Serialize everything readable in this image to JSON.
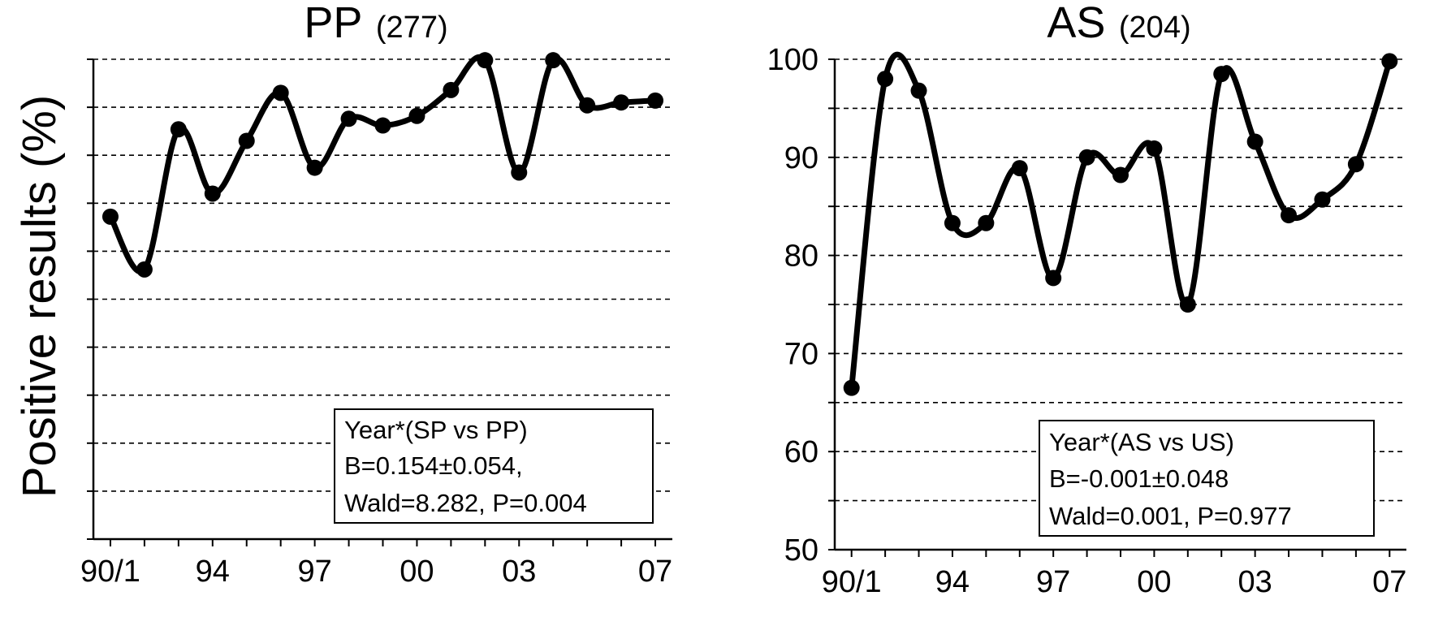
{
  "y_axis_label": "Positive results (%)",
  "chart_data": [
    {
      "type": "line",
      "title": "PP",
      "title_n": "(277)",
      "xlabel": "",
      "ylabel": "Positive results (%)",
      "x_tick_labels": [
        "90/1",
        "94",
        "97",
        "00",
        "03",
        "07"
      ],
      "x_tick_years": [
        1990,
        1993,
        1996,
        1999,
        2002,
        2006
      ],
      "xlim": [
        1989.5,
        2006.5
      ],
      "ylim": [
        50,
        100
      ],
      "y_tick_labels": [],
      "grid_step": 5,
      "grid": true,
      "series": [
        {
          "x": [
            1990,
            1991,
            1992,
            1993,
            1994,
            1995,
            1996,
            1997,
            1998,
            1999,
            2000,
            2001,
            2002,
            2003,
            2004,
            2005,
            2006
          ],
          "values": [
            83.6,
            78.1,
            92.7,
            86.0,
            91.5,
            96.5,
            88.7,
            93.8,
            93.1,
            94.1,
            96.8,
            99.9,
            88.2,
            99.9,
            95.2,
            95.5,
            95.7
          ]
        }
      ],
      "annotation": {
        "lines": [
          "Year*(SP vs PP)",
          "B=0.154±0.054,",
          "Wald=8.282, P=0.004"
        ]
      }
    },
    {
      "type": "line",
      "title": "AS",
      "title_n": "(204)",
      "xlabel": "",
      "ylabel": "",
      "x_tick_labels": [
        "90/1",
        "94",
        "97",
        "00",
        "03",
        "07"
      ],
      "x_tick_years": [
        1990,
        1993,
        1996,
        1999,
        2002,
        2006
      ],
      "xlim": [
        1989.5,
        2006.5
      ],
      "ylim": [
        50,
        100
      ],
      "y_tick_labels": [
        "50",
        "60",
        "70",
        "80",
        "90",
        "100"
      ],
      "y_tick_values": [
        50,
        60,
        70,
        80,
        90,
        100
      ],
      "grid_step": 5,
      "grid": true,
      "series": [
        {
          "x": [
            1990,
            1991,
            1992,
            1993,
            1994,
            1995,
            1996,
            1997,
            1998,
            1999,
            2000,
            2001,
            2002,
            2003,
            2004,
            2005,
            2006
          ],
          "values": [
            66.5,
            98.0,
            96.8,
            83.3,
            83.3,
            88.9,
            77.7,
            90.0,
            88.2,
            90.9,
            75.0,
            98.5,
            91.6,
            84.1,
            85.7,
            89.3,
            99.8
          ]
        }
      ],
      "annotation": {
        "lines": [
          "Year*(AS vs US)",
          "B=-0.001±0.048",
          "Wald=0.001, P=0.977"
        ]
      }
    }
  ]
}
